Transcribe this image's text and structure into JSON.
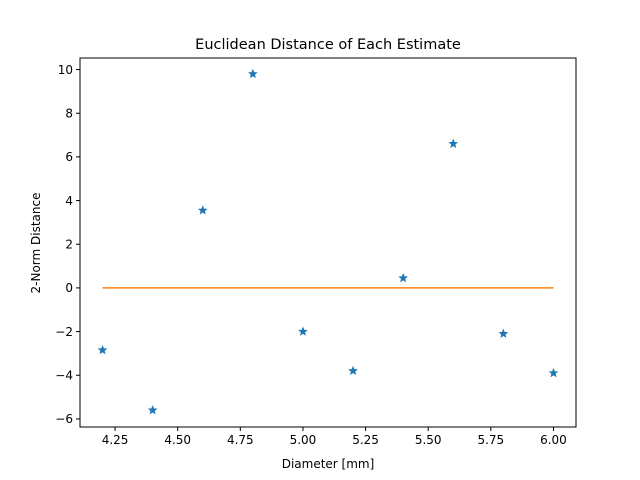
{
  "chart_data": {
    "type": "scatter",
    "title": "Euclidean Distance of Each Estimate",
    "xlabel": "Diameter [mm]",
    "ylabel": "2-Norm Distance",
    "xlim": [
      4.11,
      6.09
    ],
    "ylim": [
      -6.37,
      10.53
    ],
    "xticks": [
      4.25,
      4.5,
      4.75,
      5.0,
      5.25,
      5.5,
      5.75,
      6.0
    ],
    "xtick_labels": [
      "4.25",
      "4.50",
      "4.75",
      "5.00",
      "5.25",
      "5.50",
      "5.75",
      "6.00"
    ],
    "yticks": [
      -6,
      -4,
      -2,
      0,
      2,
      4,
      6,
      8,
      10
    ],
    "ytick_labels": [
      "−6",
      "−4",
      "−2",
      "0",
      "2",
      "4",
      "6",
      "8",
      "10"
    ],
    "grid": false,
    "series": [
      {
        "kind": "scatter",
        "marker": "star",
        "color": "#1f77b4",
        "x": [
          4.2,
          4.4,
          4.6,
          4.8,
          5.0,
          5.2,
          5.4,
          5.6,
          5.8,
          6.0
        ],
        "y": [
          -2.85,
          -5.6,
          3.55,
          9.8,
          -2.0,
          -3.8,
          0.45,
          6.6,
          -2.1,
          -3.9
        ]
      },
      {
        "kind": "line",
        "color": "#ff7f0e",
        "x": [
          4.2,
          6.0
        ],
        "y": [
          0,
          0
        ]
      }
    ]
  }
}
